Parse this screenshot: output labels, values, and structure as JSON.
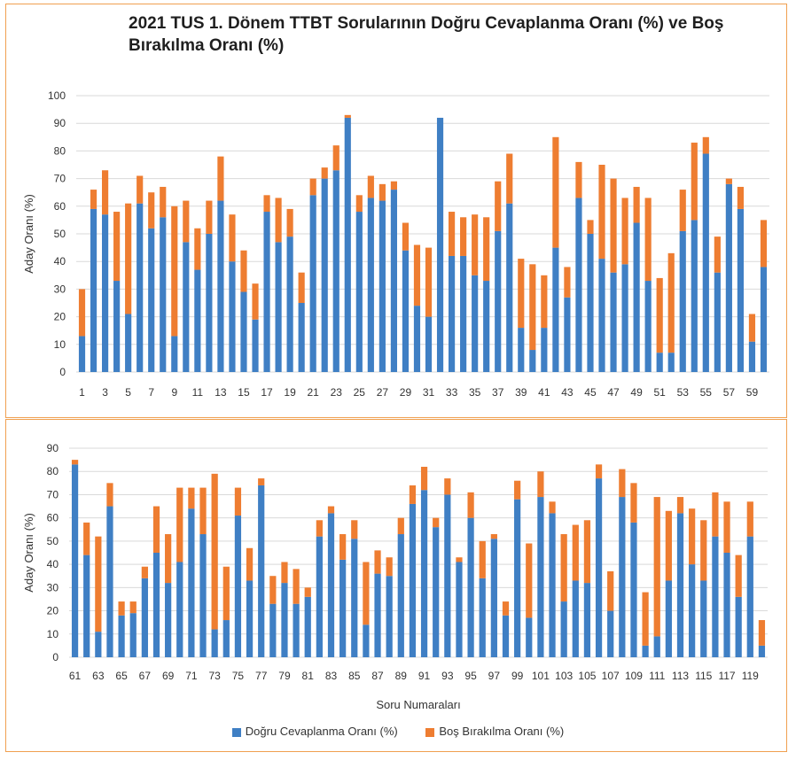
{
  "title": "2021 TUS 1. Dönem TTBT Sorularının Doğru Cevaplanma Oranı (%) ve Boş Bırakılma Oranı (%)",
  "colors": {
    "correct": "#3f7fc4",
    "blank": "#ee7d31",
    "grid": "#d9d9d9"
  },
  "legend": {
    "correct": "Doğru Cevaplanma Oranı (%)",
    "blank": "Boş Bırakılma Oranı (%)"
  },
  "chart_data": [
    {
      "type": "bar",
      "stacked": true,
      "ylabel": "Aday Oranı (%)",
      "xlabel": "",
      "ylim": [
        0,
        100
      ],
      "yticks": [
        0,
        10,
        20,
        30,
        40,
        50,
        60,
        70,
        80,
        90,
        100
      ],
      "x_start": 1,
      "x_label_step": 2,
      "series": [
        {
          "name": "Doğru Cevaplanma Oranı (%)",
          "values": [
            13,
            59,
            57,
            33,
            21,
            61,
            52,
            56,
            13,
            47,
            37,
            50,
            62,
            40,
            29,
            19,
            58,
            47,
            49,
            25,
            64,
            70,
            73,
            92,
            58,
            63,
            62,
            66,
            44,
            24,
            20,
            92,
            42,
            42,
            35,
            33,
            51,
            61,
            16,
            8,
            16,
            45,
            27,
            63,
            50,
            41,
            36,
            39,
            54,
            33,
            7,
            7,
            51,
            55,
            79,
            36,
            68,
            59,
            11,
            38
          ]
        },
        {
          "name": "Boş Bırakılma Oranı (%)",
          "values": [
            17,
            7,
            16,
            25,
            40,
            10,
            13,
            11,
            47,
            15,
            15,
            12,
            16,
            17,
            15,
            13,
            6,
            16,
            10,
            11,
            6,
            4,
            9,
            1,
            6,
            8,
            6,
            3,
            10,
            22,
            25,
            0,
            16,
            14,
            22,
            23,
            18,
            18,
            25,
            31,
            19,
            40,
            11,
            13,
            5,
            34,
            34,
            24,
            13,
            30,
            27,
            36,
            15,
            28,
            6,
            13,
            2,
            8,
            10,
            17
          ]
        }
      ]
    },
    {
      "type": "bar",
      "stacked": true,
      "ylabel": "Aday Oranı (%)",
      "xlabel": "Soru Numaraları",
      "ylim": [
        0,
        90
      ],
      "yticks": [
        0,
        10,
        20,
        30,
        40,
        50,
        60,
        70,
        80,
        90
      ],
      "x_start": 61,
      "x_label_step": 2,
      "series": [
        {
          "name": "Doğru Cevaplanma Oranı (%)",
          "values": [
            83,
            44,
            11,
            65,
            18,
            19,
            34,
            45,
            32,
            41,
            64,
            53,
            12,
            16,
            61,
            33,
            74,
            23,
            32,
            23,
            26,
            52,
            62,
            42,
            51,
            14,
            36,
            35,
            53,
            66,
            72,
            56,
            70,
            41,
            60,
            34,
            51,
            18,
            68,
            17,
            69,
            62,
            24,
            33,
            32,
            77,
            20,
            69,
            58,
            5,
            9,
            33,
            62,
            40,
            33,
            52,
            45,
            26,
            52,
            5
          ]
        },
        {
          "name": "Boş Bırakılma Oranı (%)",
          "values": [
            2,
            14,
            41,
            10,
            6,
            5,
            5,
            20,
            21,
            32,
            9,
            20,
            67,
            23,
            12,
            14,
            3,
            12,
            9,
            15,
            4,
            7,
            3,
            11,
            8,
            27,
            10,
            8,
            7,
            8,
            10,
            4,
            7,
            2,
            11,
            16,
            2,
            6,
            8,
            32,
            11,
            5,
            29,
            24,
            27,
            6,
            17,
            12,
            17,
            23,
            60,
            30,
            7,
            24,
            26,
            19,
            22,
            18,
            15,
            11
          ]
        }
      ]
    }
  ]
}
